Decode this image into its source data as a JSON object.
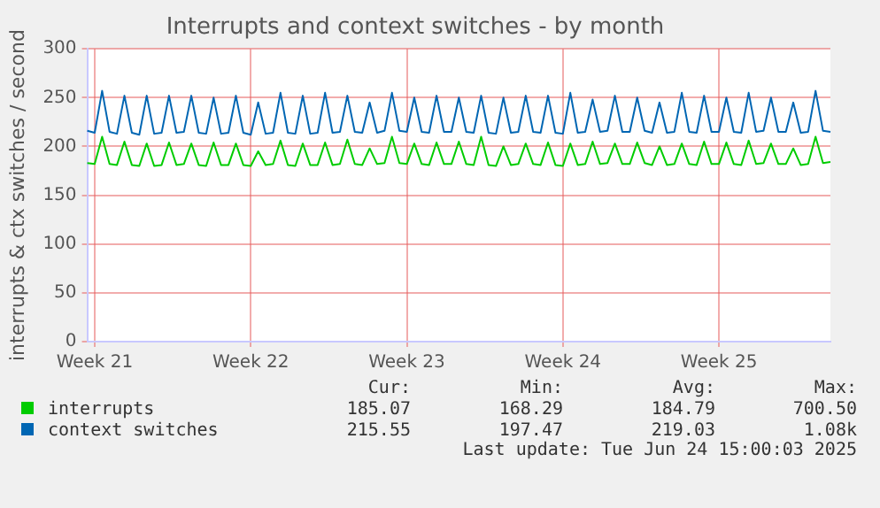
{
  "chart_data": {
    "type": "line",
    "title": "Interrupts and context switches - by month",
    "ylabel": "interrupts & ctx switches / second",
    "categories": [
      null,
      "Week 21",
      null,
      null,
      null,
      null,
      null,
      null,
      null,
      null,
      null,
      null,
      null,
      null,
      null,
      null,
      null,
      null,
      null,
      null,
      null,
      null,
      "Week 22",
      null,
      null,
      null,
      null,
      null,
      null,
      null,
      null,
      null,
      null,
      null,
      null,
      null,
      null,
      null,
      null,
      null,
      null,
      null,
      null,
      "Week 23",
      null,
      null,
      null,
      null,
      null,
      null,
      null,
      null,
      null,
      null,
      null,
      null,
      null,
      null,
      null,
      null,
      null,
      null,
      null,
      null,
      "Week 24",
      null,
      null,
      null,
      null,
      null,
      null,
      null,
      null,
      null,
      null,
      null,
      null,
      null,
      null,
      null,
      null,
      null,
      null,
      null,
      null,
      "Week 25",
      null,
      null,
      null,
      null,
      null,
      null,
      null,
      null,
      null,
      null,
      null,
      null,
      null,
      null,
      null
    ],
    "series": [
      {
        "name": "interrupts",
        "color": "#00cc00",
        "values": [
          183,
          182,
          210,
          182,
          181,
          205,
          181,
          180,
          203,
          180,
          181,
          204,
          181,
          182,
          203,
          181,
          180,
          204,
          181,
          181,
          203,
          181,
          180,
          195,
          181,
          182,
          206,
          181,
          180,
          203,
          181,
          181,
          204,
          181,
          182,
          207,
          182,
          181,
          198,
          182,
          183,
          210,
          183,
          182,
          203,
          182,
          181,
          204,
          182,
          182,
          205,
          182,
          181,
          210,
          181,
          180,
          200,
          181,
          182,
          203,
          182,
          181,
          204,
          181,
          180,
          203,
          181,
          182,
          205,
          182,
          183,
          203,
          182,
          182,
          204,
          183,
          181,
          200,
          181,
          182,
          203,
          182,
          181,
          205,
          182,
          182,
          204,
          182,
          181,
          206,
          182,
          183,
          203,
          182,
          182,
          198,
          181,
          182,
          210,
          183,
          184
        ]
      },
      {
        "name": "context switches",
        "color": "#0066b3",
        "values": [
          216,
          214,
          257,
          215,
          213,
          252,
          214,
          212,
          252,
          213,
          214,
          252,
          214,
          215,
          252,
          214,
          213,
          250,
          213,
          214,
          252,
          214,
          212,
          245,
          213,
          214,
          255,
          214,
          213,
          252,
          213,
          214,
          255,
          214,
          215,
          252,
          215,
          214,
          245,
          214,
          216,
          255,
          216,
          215,
          250,
          215,
          214,
          252,
          215,
          215,
          250,
          215,
          214,
          252,
          214,
          213,
          250,
          214,
          215,
          252,
          215,
          214,
          252,
          214,
          213,
          255,
          214,
          215,
          248,
          215,
          216,
          252,
          215,
          215,
          250,
          216,
          214,
          245,
          214,
          215,
          255,
          215,
          214,
          252,
          215,
          215,
          250,
          215,
          214,
          255,
          215,
          216,
          250,
          215,
          215,
          245,
          214,
          215,
          257,
          216,
          215
        ]
      }
    ],
    "ylim": [
      0,
      300
    ],
    "yticks": [
      0,
      50,
      100,
      150,
      200,
      250,
      300
    ],
    "grid": true,
    "legend": "bottom",
    "marker": "none",
    "line_style": "solid",
    "annotations": [
      "Cur:",
      "Min:",
      "Avg:",
      "Max:",
      "185.07",
      "168.29",
      "184.79",
      "700.50",
      "215.55",
      "197.47",
      "219.03",
      "1.08k",
      "Last update: Tue Jun 24 15:00:03 2025"
    ]
  }
}
